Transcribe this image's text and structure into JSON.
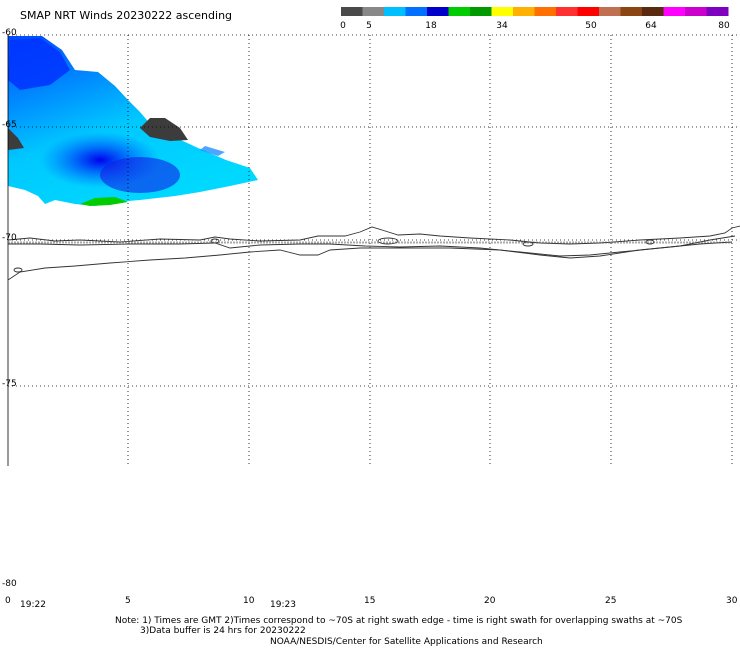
{
  "title": "SMAP NRT Winds 20230222 ascending",
  "colorbar": {
    "tick_labels": [
      "0",
      "5",
      "18",
      "34",
      "50",
      "64",
      "80"
    ],
    "segments": [
      "#4a4a4a",
      "#888888",
      "#00bfff",
      "#0070ff",
      "#0000cd",
      "#00cc00",
      "#009900",
      "#ffff00",
      "#ffb000",
      "#ff7000",
      "#ff3030",
      "#ff0000",
      "#c07050",
      "#8b4513",
      "#5a2a10",
      "#ff00ff",
      "#cc00cc",
      "#8000c0"
    ]
  },
  "map": {
    "lat_labels": [
      "-60",
      "-65",
      "-70",
      "-75",
      "-80"
    ],
    "lon_labels": [
      "0",
      "5",
      "10",
      "15",
      "20",
      "25",
      "30"
    ],
    "time_labels": [
      "19:22",
      "19:23"
    ]
  },
  "notes": {
    "line1": "Note: 1) Times are GMT 2)Times correspond to ~70S at right swath edge - time is right swath for overlapping swaths at ~70S",
    "line2": "3)Data buffer is 24 hrs for 20230222",
    "line3": "NOAA/NESDIS/Center for Satellite Applications and Research"
  }
}
